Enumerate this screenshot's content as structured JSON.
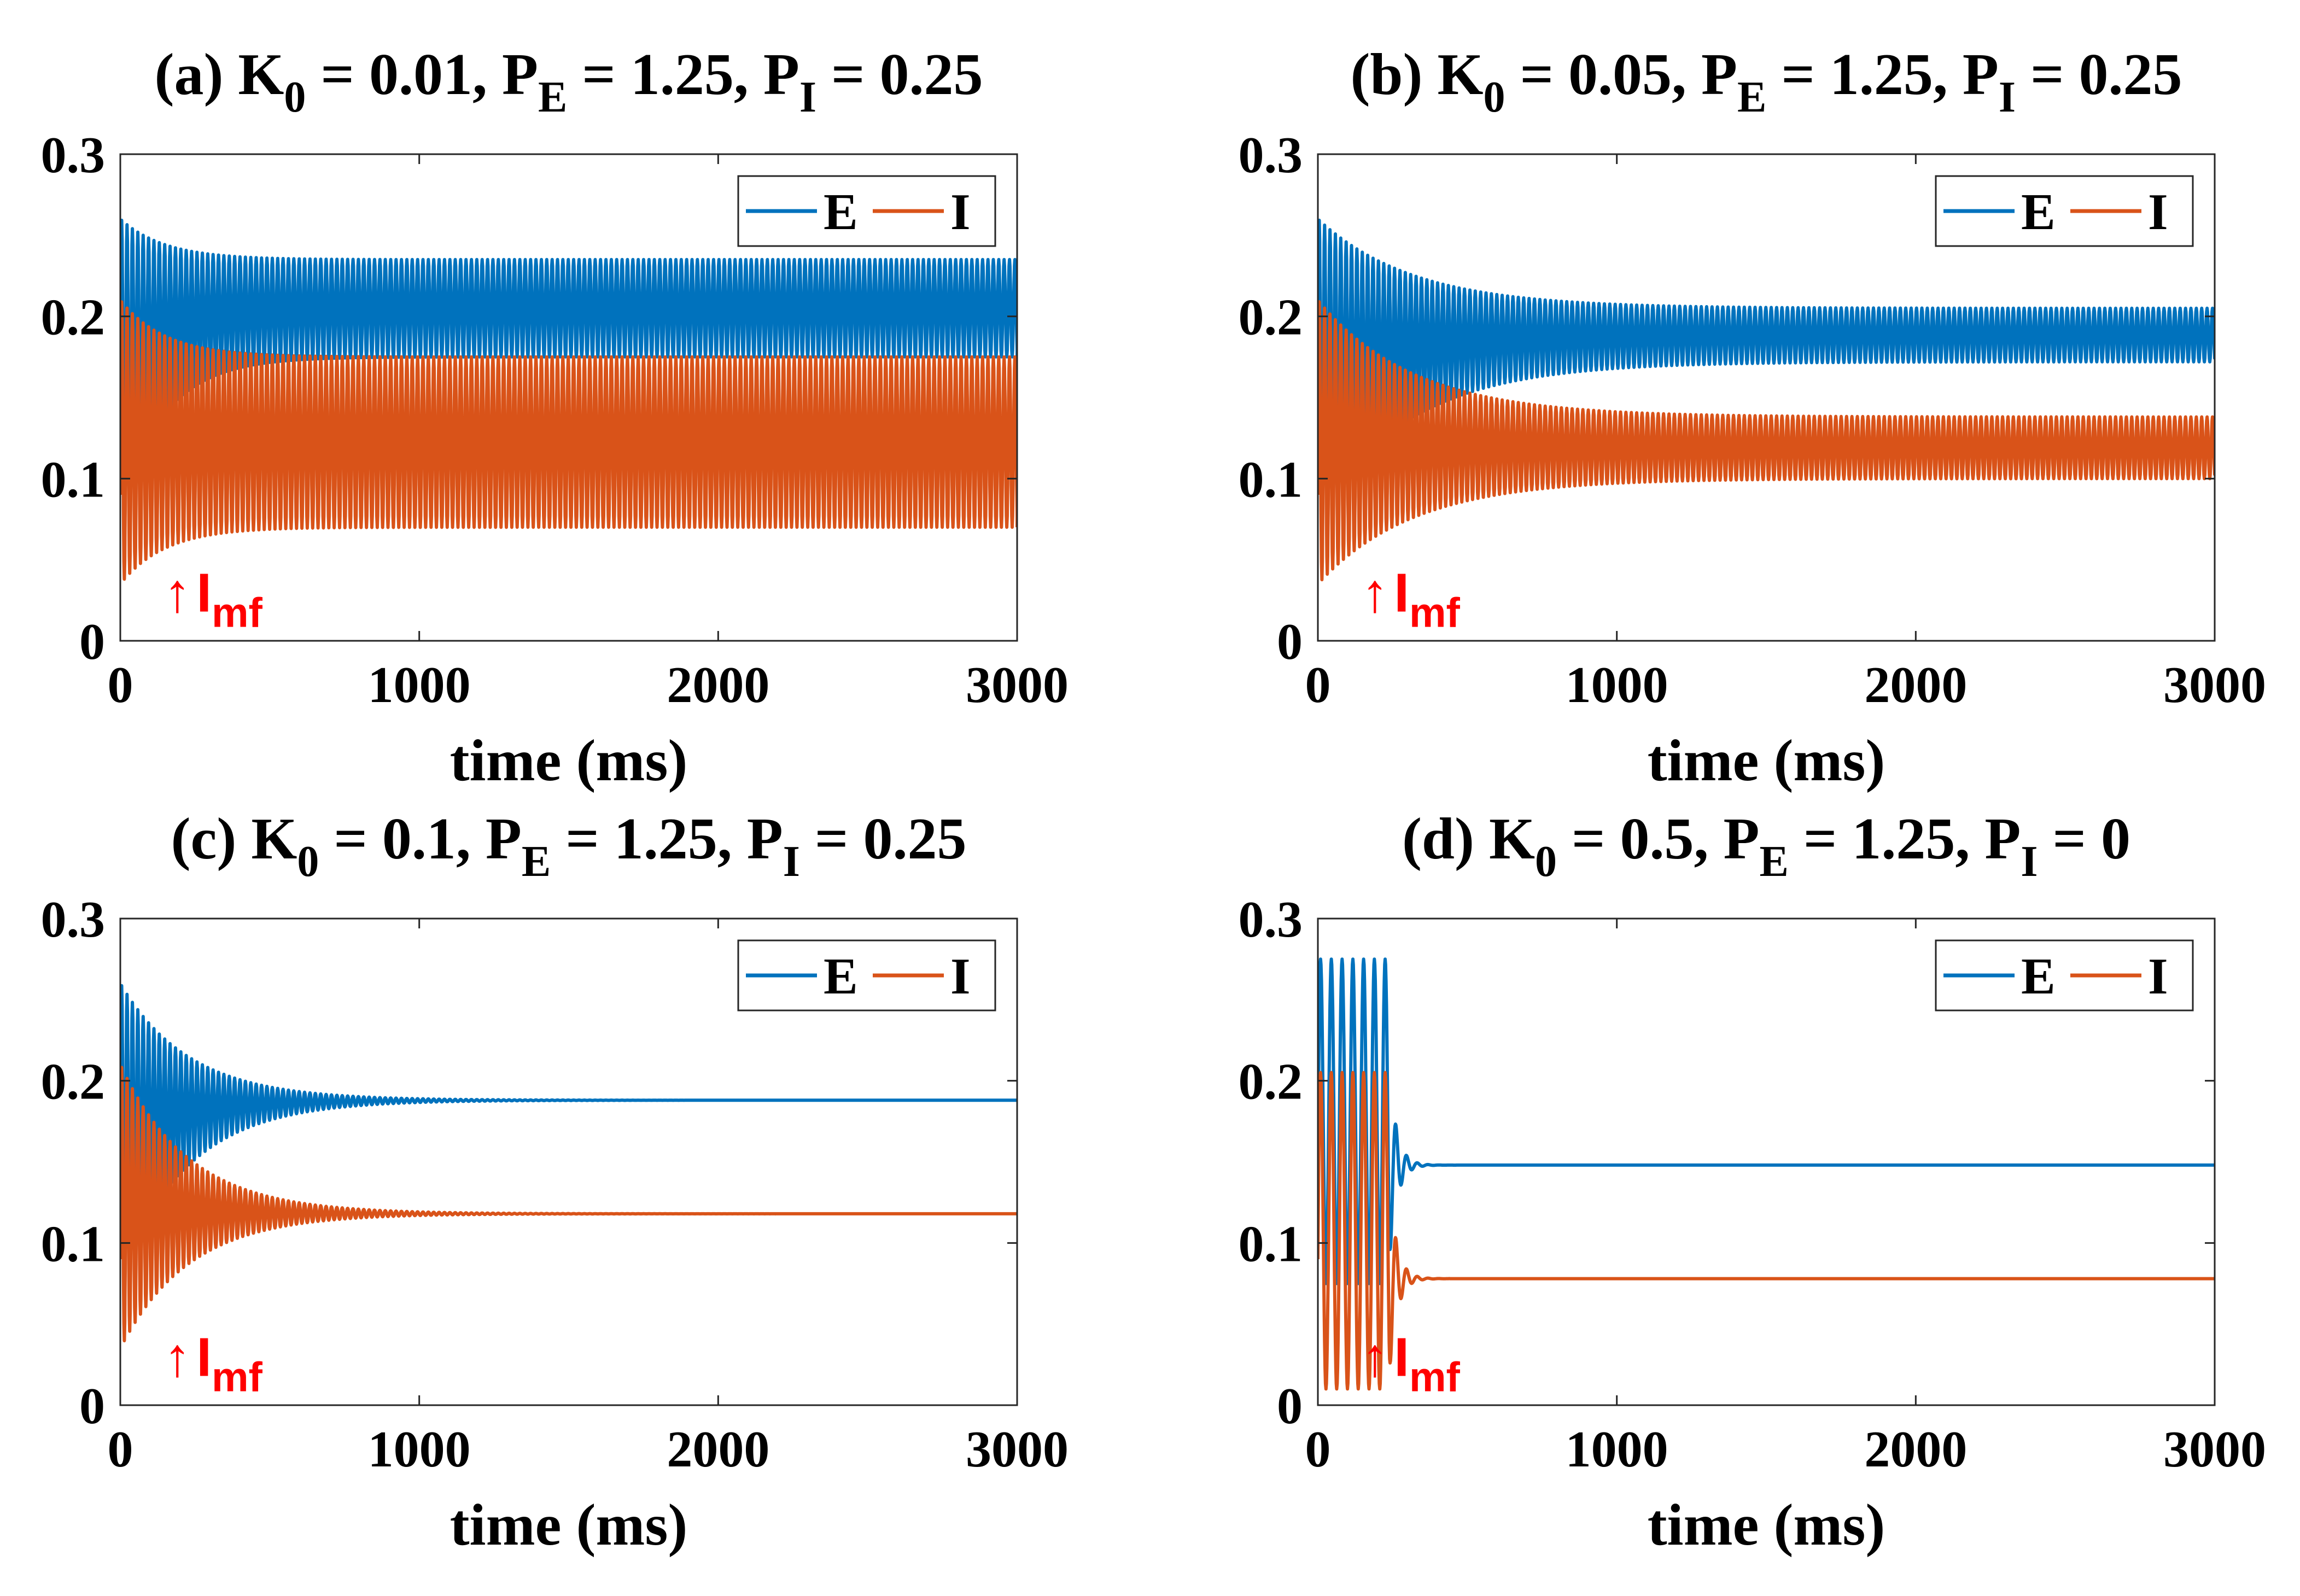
{
  "colors": {
    "E": "#0072BD",
    "I": "#D95319",
    "annotation": "#FF0000",
    "axes": "#262626"
  },
  "chart_data": [
    {
      "type": "line",
      "panel": "a",
      "title": {
        "label": "(a) K",
        "k_sub": "0",
        "k_value": " = 0.01, P",
        "pe_sub": "E",
        "pe_value": " = 1.25, P",
        "pi_sub": "I",
        "pi_value": " = 0.25"
      },
      "xlabel": "time (ms)",
      "ylabel": "",
      "xlim": [
        0,
        3000
      ],
      "ylim": [
        0,
        0.3
      ],
      "xticks": [
        0,
        1000,
        2000,
        3000
      ],
      "xtick_labels": [
        "0",
        "1000",
        "2000",
        "3000"
      ],
      "yticks": [
        0,
        0.1,
        0.2,
        0.3
      ],
      "ytick_labels": [
        "0",
        "0.1",
        "0.2",
        "0.3"
      ],
      "legend": {
        "entries": [
          "E",
          "I"
        ],
        "location": "top-right"
      },
      "annotation": {
        "arrow": "↑",
        "text": "I",
        "sub": "mf",
        "x": 240,
        "y": 0.01
      },
      "series": [
        {
          "name": "E",
          "baseline": 0.11,
          "osc_start": 0,
          "period": 18,
          "peak0": 0.26,
          "trough0": 0.08,
          "peak_ss": 0.235,
          "trough_ss": 0.175,
          "tau": 150,
          "line_end": 0.17
        },
        {
          "name": "I",
          "baseline": 0.09,
          "osc_start": 0,
          "period": 18,
          "peak0": 0.21,
          "trough0": 0.035,
          "peak_ss": 0.175,
          "trough_ss": 0.07,
          "tau": 150,
          "line_end": 0.07
        }
      ]
    },
    {
      "type": "line",
      "panel": "b",
      "title": {
        "label": "(b) K",
        "k_sub": "0",
        "k_value": " = 0.05, P",
        "pe_sub": "E",
        "pe_value": " = 1.25, P",
        "pi_sub": "I",
        "pi_value": " = 0.25"
      },
      "xlabel": "time (ms)",
      "ylabel": "",
      "xlim": [
        0,
        3000
      ],
      "ylim": [
        0,
        0.3
      ],
      "xticks": [
        0,
        1000,
        2000,
        3000
      ],
      "xtick_labels": [
        "0",
        "1000",
        "2000",
        "3000"
      ],
      "yticks": [
        0,
        0.1,
        0.2,
        0.3
      ],
      "ytick_labels": [
        "0",
        "0.1",
        "0.2",
        "0.3"
      ],
      "legend": {
        "entries": [
          "E",
          "I"
        ],
        "location": "top-right"
      },
      "annotation": {
        "arrow": "↑",
        "text": "I",
        "sub": "mf",
        "x": 240,
        "y": 0.01
      },
      "series": [
        {
          "name": "E",
          "baseline": 0.11,
          "osc_start": 0,
          "period": 18,
          "peak0": 0.26,
          "trough0": 0.08,
          "peak_ss": 0.205,
          "trough_ss": 0.172,
          "tau": 320,
          "line_end": 0.19
        },
        {
          "name": "I",
          "baseline": 0.09,
          "osc_start": 0,
          "period": 18,
          "peak0": 0.21,
          "trough0": 0.035,
          "peak_ss": 0.138,
          "trough_ss": 0.1,
          "tau": 320,
          "line_end": 0.12
        }
      ]
    },
    {
      "type": "line",
      "panel": "c",
      "title": {
        "label": "(c) K",
        "k_sub": "0",
        "k_value": " = 0.1, P",
        "pe_sub": "E",
        "pe_value": " = 1.25, P",
        "pi_sub": "I",
        "pi_value": " = 0.25"
      },
      "xlabel": "time (ms)",
      "ylabel": "",
      "xlim": [
        0,
        3000
      ],
      "ylim": [
        0,
        0.3
      ],
      "xticks": [
        0,
        1000,
        2000,
        3000
      ],
      "xtick_labels": [
        "0",
        "1000",
        "2000",
        "3000"
      ],
      "yticks": [
        0,
        0.1,
        0.2,
        0.3
      ],
      "ytick_labels": [
        "0",
        "0.1",
        "0.2",
        "0.3"
      ],
      "legend": {
        "entries": [
          "E",
          "I"
        ],
        "location": "top-right"
      },
      "annotation": {
        "arrow": "↑",
        "text": "I",
        "sub": "mf",
        "x": 240,
        "y": 0.01
      },
      "series": [
        {
          "name": "E",
          "baseline": 0.11,
          "osc_start": 0,
          "period": 18,
          "peak0": 0.26,
          "trough0": 0.08,
          "peak_ss": 0.188,
          "trough_ss": 0.188,
          "tau": 230,
          "line_end": 0.188
        },
        {
          "name": "I",
          "baseline": 0.09,
          "osc_start": 0,
          "period": 18,
          "peak0": 0.21,
          "trough0": 0.035,
          "peak_ss": 0.118,
          "trough_ss": 0.118,
          "tau": 230,
          "line_end": 0.118
        }
      ]
    },
    {
      "type": "line",
      "panel": "d",
      "title": {
        "label": "(d) K",
        "k_sub": "0",
        "k_value": " = 0.5, P",
        "pe_sub": "E",
        "pe_value": " = 1.25, P",
        "pi_sub": "I",
        "pi_value": " = 0"
      },
      "xlabel": "time (ms)",
      "ylabel": "",
      "xlim": [
        0,
        3000
      ],
      "ylim": [
        0,
        0.3
      ],
      "xticks": [
        0,
        1000,
        2000,
        3000
      ],
      "xtick_labels": [
        "0",
        "1000",
        "2000",
        "3000"
      ],
      "yticks": [
        0,
        0.1,
        0.2,
        0.3
      ],
      "ytick_labels": [
        "0",
        "0.1",
        "0.2",
        "0.3"
      ],
      "legend": {
        "entries": [
          "E",
          "I"
        ],
        "location": "top-right"
      },
      "annotation": {
        "arrow": "↑",
        "text": "I",
        "sub": "mf",
        "x": 240,
        "y": 0.01
      },
      "series": [
        {
          "name": "E",
          "baseline": 0.11,
          "osc_start": 0,
          "period": 36,
          "peak0": 0.275,
          "trough0": 0.075,
          "burst_end": 240,
          "peak_ss": 0.148,
          "trough_ss": 0.148,
          "tau": 25,
          "line_end": 0.148
        },
        {
          "name": "I",
          "baseline": 0.09,
          "osc_start": 0,
          "period": 36,
          "peak0": 0.205,
          "trough0": 0.01,
          "burst_end": 240,
          "peak_ss": 0.078,
          "trough_ss": 0.078,
          "tau": 25,
          "line_end": 0.078
        }
      ]
    }
  ]
}
